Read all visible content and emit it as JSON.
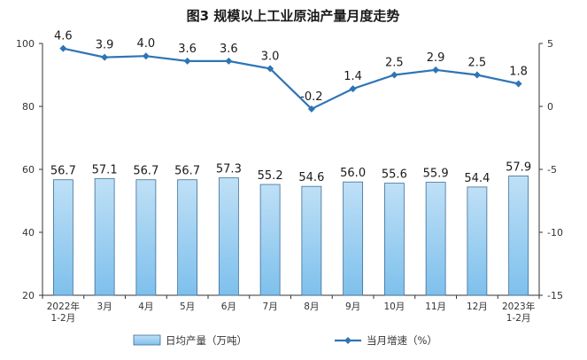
{
  "chart_data": {
    "type": "bar+line",
    "title": "图3  规模以上工业原油产量月度走势",
    "categories": [
      [
        "2022年",
        "1-2月"
      ],
      [
        "3月"
      ],
      [
        "4月"
      ],
      [
        "5月"
      ],
      [
        "6月"
      ],
      [
        "7月"
      ],
      [
        "8月"
      ],
      [
        "9月"
      ],
      [
        "10月"
      ],
      [
        "11月"
      ],
      [
        "12月"
      ],
      [
        "2023年",
        "1-2月"
      ]
    ],
    "series": [
      {
        "name": "日均产量（万吨）",
        "type": "bar",
        "axis": "left",
        "values": [
          56.7,
          57.1,
          56.7,
          56.7,
          57.3,
          55.2,
          54.6,
          56.0,
          55.6,
          55.9,
          54.4,
          57.9
        ],
        "labels": [
          "56.7",
          "57.1",
          "56.7",
          "56.7",
          "57.3",
          "55.2",
          "54.6",
          "56.0",
          "55.6",
          "55.9",
          "54.4",
          "57.9"
        ]
      },
      {
        "name": "当月增速（%）",
        "type": "line",
        "axis": "right",
        "values": [
          4.6,
          3.9,
          4.0,
          3.6,
          3.6,
          3.0,
          -0.2,
          1.4,
          2.5,
          2.9,
          2.5,
          1.8
        ],
        "labels": [
          "4.6",
          "3.9",
          "4.0",
          "3.6",
          "3.6",
          "3.0",
          "-0.2",
          "1.4",
          "2.5",
          "2.9",
          "2.5",
          "1.8"
        ]
      }
    ],
    "y_left": {
      "ylim": [
        20,
        100
      ],
      "ticks": [
        20,
        40,
        60,
        80,
        100
      ],
      "tick_labels": [
        "20",
        "40",
        "60",
        "80",
        "100"
      ]
    },
    "y_right": {
      "ylim": [
        -15,
        5
      ],
      "ticks": [
        -15,
        -10,
        -5,
        0,
        5
      ],
      "tick_labels": [
        "-15",
        "-10",
        "-5",
        "0",
        "5"
      ]
    },
    "grid": false,
    "legend_position": "bottom",
    "colors": {
      "bar_fill_top": "#bfe0f6",
      "bar_fill_bottom": "#7ec0ec",
      "bar_stroke": "#3d6d9a",
      "line": "#2e75b6",
      "axis": "#333333"
    }
  }
}
